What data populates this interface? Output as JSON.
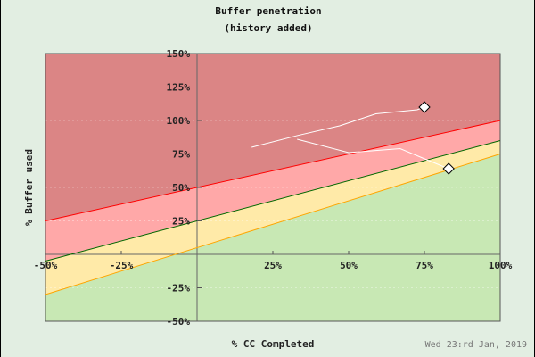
{
  "chart_data": {
    "type": "line",
    "title": "Buffer penetration",
    "subtitle": "(history added)",
    "xlabel": "% CC Completed",
    "ylabel": "% Buffer used",
    "footer": "Wed 23:rd Jan, 2019",
    "xlim": [
      -50,
      100
    ],
    "ylim": [
      -50,
      150
    ],
    "x_ticks": [
      "-50%",
      "-25%",
      "25%",
      "50%",
      "75%",
      "100%"
    ],
    "x_tick_values": [
      -50,
      -25,
      25,
      50,
      75,
      100
    ],
    "y_ticks": [
      "150%",
      "125%",
      "100%",
      "75%",
      "50%",
      "25%",
      "-25%",
      "-50%"
    ],
    "y_tick_values": [
      150,
      125,
      100,
      75,
      50,
      25,
      -25,
      -50
    ],
    "grid": true,
    "zones": [
      {
        "name": "red-zone",
        "color": "#db8585",
        "from_line": "red"
      },
      {
        "name": "pink-zone",
        "color": "#ffa8a8",
        "from_line": "green"
      },
      {
        "name": "yellow-zone",
        "color": "#ffeaa8",
        "from_line": "orange"
      },
      {
        "name": "green-zone",
        "color": "#c8e8b4"
      }
    ],
    "boundary_lines": [
      {
        "name": "red",
        "color": "#ff0000",
        "x": [
          -50,
          100
        ],
        "y": [
          25,
          100
        ]
      },
      {
        "name": "green",
        "color": "#006600",
        "x": [
          -50,
          100
        ],
        "y": [
          -5,
          85
        ]
      },
      {
        "name": "orange",
        "color": "#ffa500",
        "x": [
          -50,
          100
        ],
        "y": [
          -30,
          75
        ]
      }
    ],
    "series": [
      {
        "name": "history-1",
        "color": "#ffffff",
        "x": [
          18,
          33,
          47,
          59,
          72.6,
          75
        ],
        "y": [
          80,
          88.7,
          96,
          105,
          108,
          110
        ]
      },
      {
        "name": "history-2",
        "color": "#ffffff",
        "x": [
          33,
          50,
          67,
          76.5,
          83
        ],
        "y": [
          86,
          76,
          79,
          70,
          64
        ]
      }
    ]
  }
}
